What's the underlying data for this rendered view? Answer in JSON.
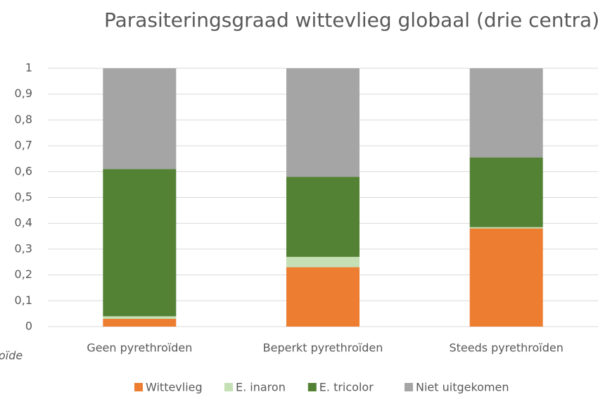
{
  "chart_data": {
    "type": "stacked_bar",
    "title": "Parasiteringsgraad wittevlieg globaal (drie centra)",
    "annotation": "oïde",
    "categories": [
      "Geen pyrethroïden",
      "Beperkt pyrethroïden",
      "Steeds pyrethroïden"
    ],
    "series": [
      {
        "name": "Wittevlieg",
        "color": "#ed7d31",
        "values": [
          0.03,
          0.23,
          0.38
        ]
      },
      {
        "name": "E. inaron",
        "color": "#c5e0b4",
        "values": [
          0.01,
          0.04,
          0.005
        ]
      },
      {
        "name": "E. tricolor",
        "color": "#548235",
        "values": [
          0.57,
          0.31,
          0.27
        ]
      },
      {
        "name": "Niet uitgekomen",
        "color": "#a5a5a5",
        "values": [
          0.39,
          0.42,
          0.345
        ]
      }
    ],
    "ylim": [
      0,
      1
    ],
    "yticks": [
      0,
      {
        "value": 0.1,
        "label": "0,1"
      },
      {
        "value": 0.2,
        "label": "0,2"
      },
      {
        "value": 0.3,
        "label": "0,3"
      },
      {
        "value": 0.4,
        "label": "0,4"
      },
      {
        "value": 0.5,
        "label": "0,5"
      },
      {
        "value": 0.6,
        "label": "0,6"
      },
      {
        "value": 0.7,
        "label": "0,7"
      },
      {
        "value": 0.8,
        "label": "0,8"
      },
      {
        "value": 0.9,
        "label": "0,9"
      },
      1
    ],
    "grid": true,
    "legend": "bottom"
  }
}
